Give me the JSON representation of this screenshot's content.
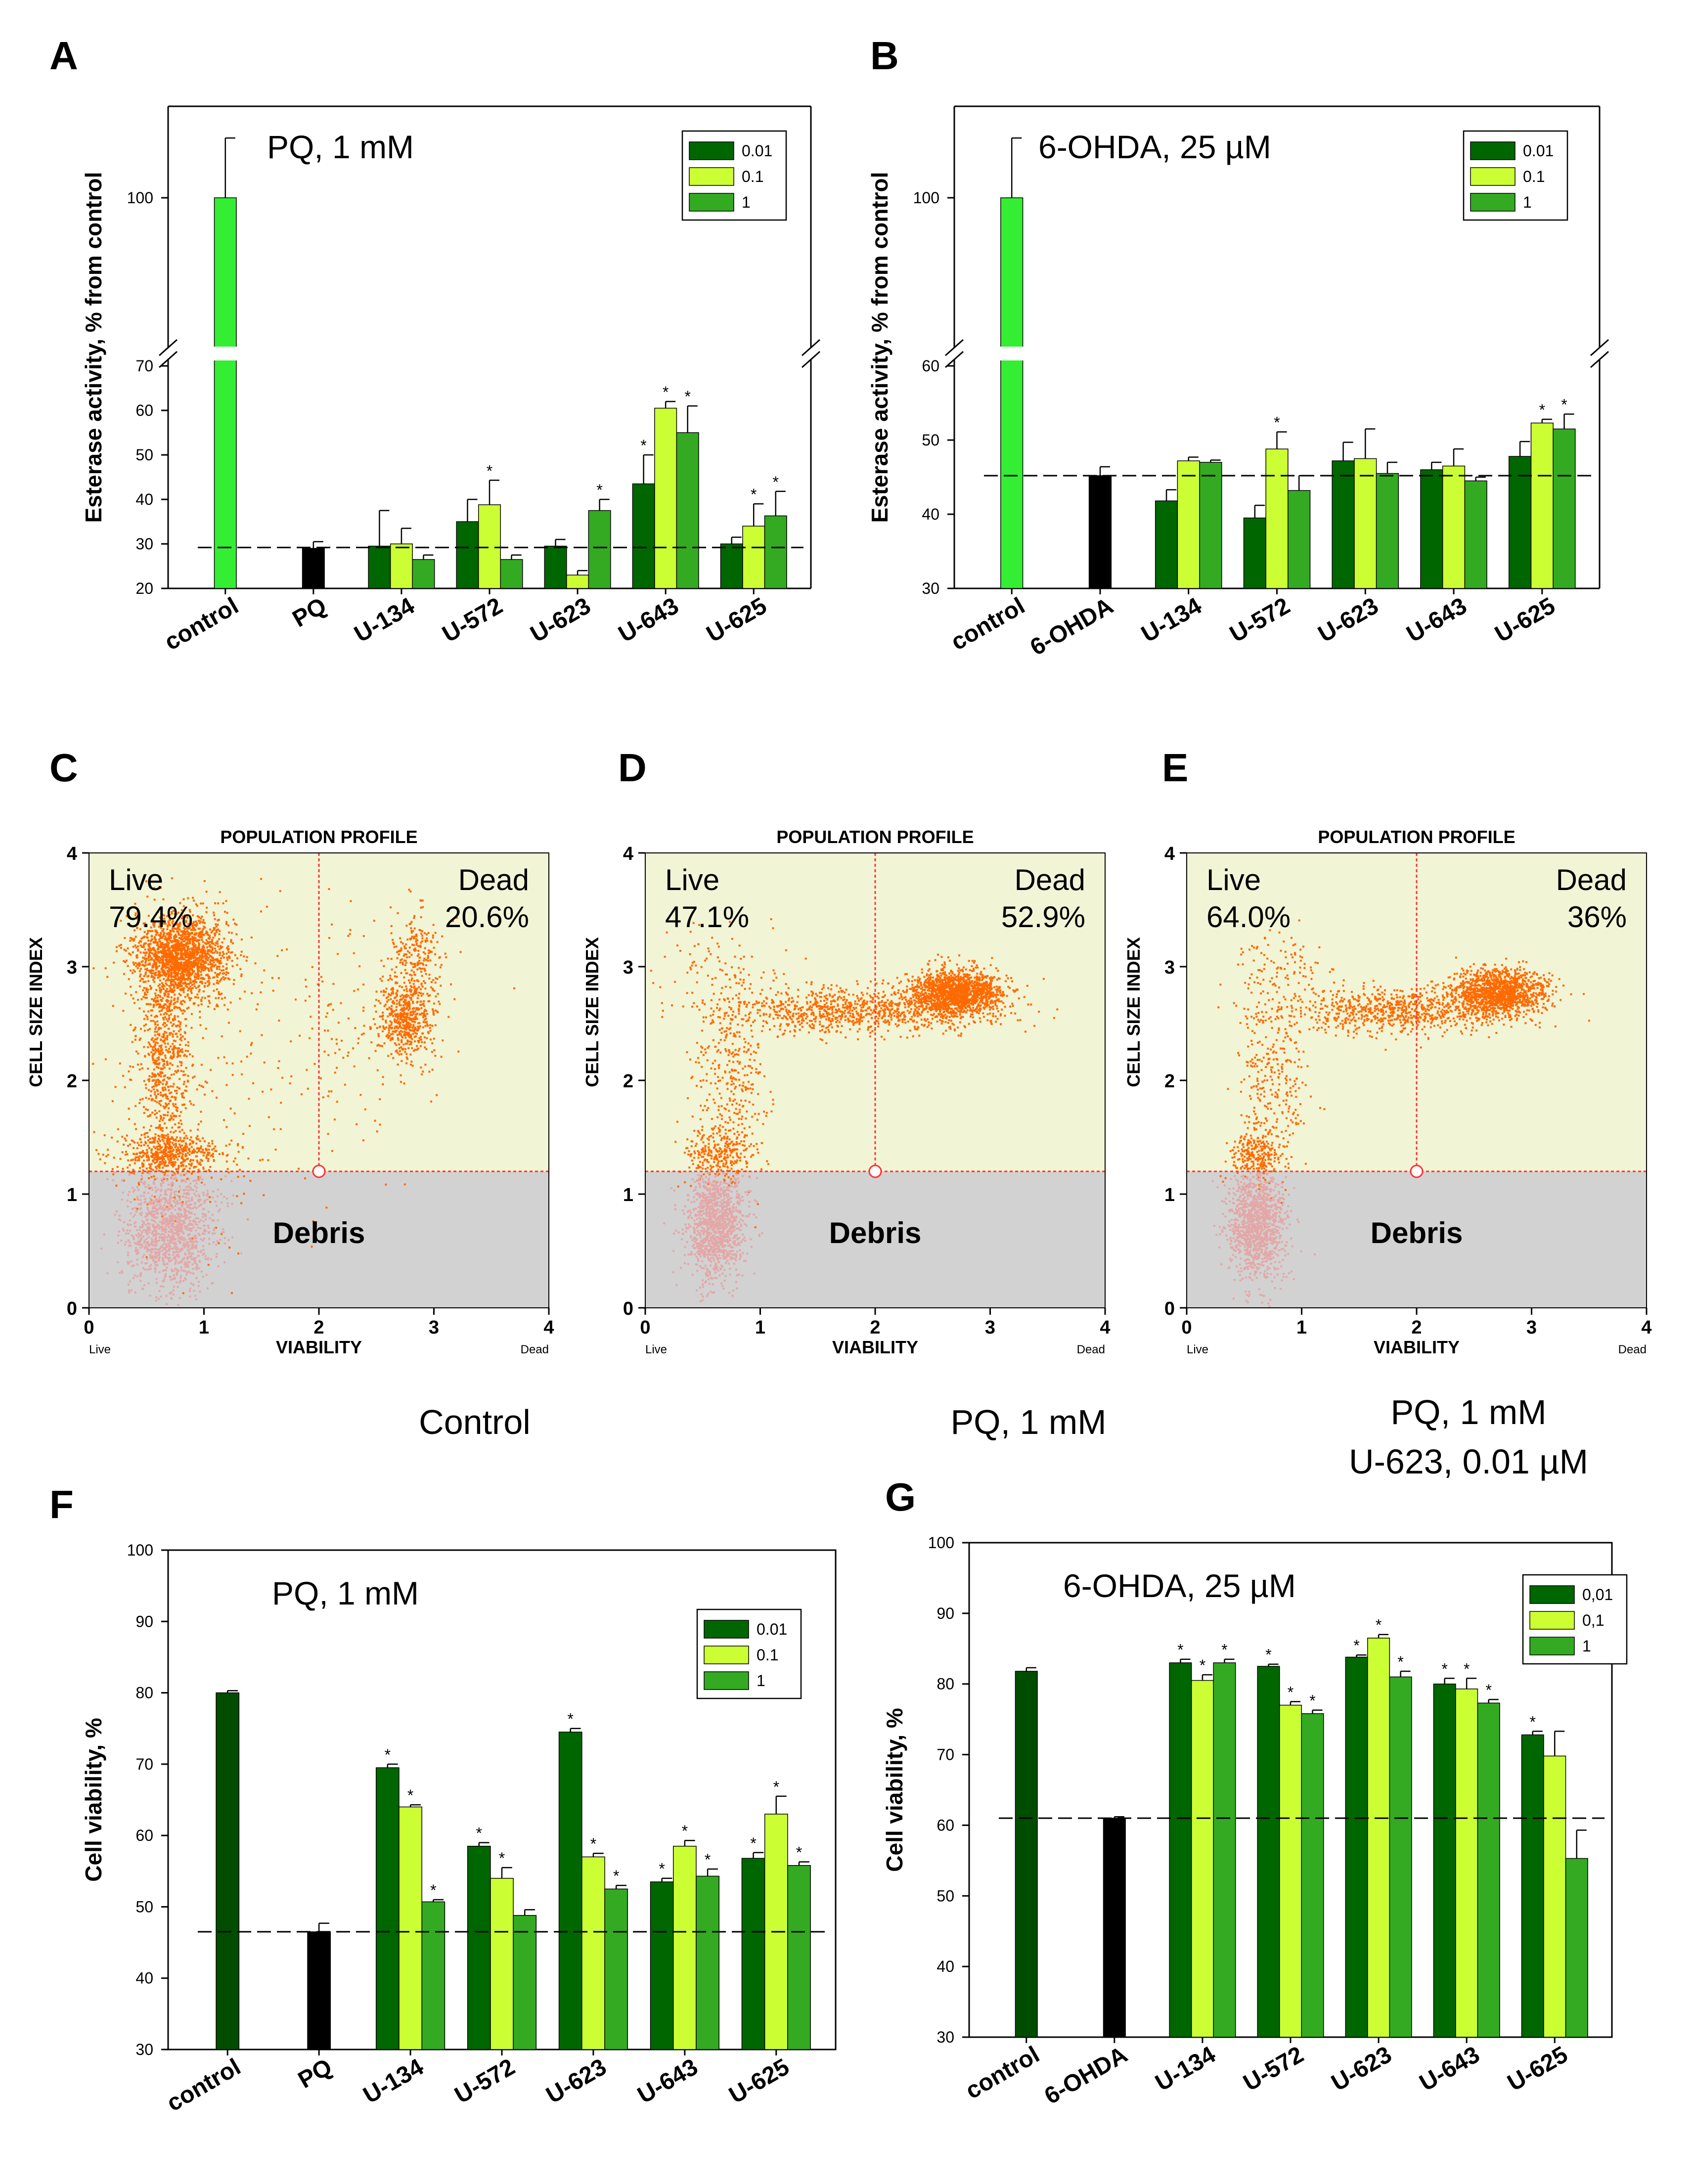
{
  "colors": {
    "c001": "#006600",
    "c01": "#ccff33",
    "c1": "#33aa22",
    "control_bright": "#33ee33",
    "control_dark": "#004d00",
    "black": "#000000",
    "flow_live": "#f1f5d6",
    "flow_debris": "#d2d2d2",
    "flow_dot": "#ff6a00",
    "flow_debris_dot": "#e3a7a7",
    "gate": "#ff3333"
  },
  "chart_data": [
    {
      "id": "A",
      "type": "bar",
      "panel_letter": "A",
      "title": "PQ, 1 mM",
      "ylabel": "Esterase activity, % from control",
      "categories": [
        "control",
        "PQ",
        "U-134",
        "U-572",
        "U-623",
        "U-643",
        "U-625"
      ],
      "legend": [
        "0.01",
        "0.1",
        "1"
      ],
      "ylim_lower": [
        20,
        70
      ],
      "yticks_lower": [
        20,
        30,
        40,
        50,
        60,
        70
      ],
      "yticks_upper": [
        100
      ],
      "axis_break": true,
      "reference_line": 29.2,
      "single_bars": [
        {
          "category": "control",
          "value": 100,
          "err": 5,
          "color": "control_bright"
        },
        {
          "category": "PQ",
          "value": 29,
          "err": 1.5,
          "color": "black"
        }
      ],
      "series": [
        {
          "name": "0.01",
          "values": [
            null,
            null,
            29.5,
            35,
            29.5,
            43.5,
            30
          ],
          "err": [
            null,
            null,
            8,
            5,
            1.5,
            6.5,
            1.5
          ]
        },
        {
          "name": "0.1",
          "values": [
            null,
            null,
            30,
            38.8,
            23,
            60.5,
            34
          ],
          "err": [
            null,
            null,
            3.5,
            5.5,
            1,
            1.5,
            5
          ]
        },
        {
          "name": "1",
          "values": [
            null,
            null,
            26.5,
            26.5,
            37.5,
            55,
            36.3
          ],
          "err": [
            null,
            null,
            1,
            1,
            2.5,
            6,
            5.5
          ]
        }
      ],
      "significance": [
        [
          null,
          null,
          false,
          false,
          false,
          true,
          false
        ],
        [
          null,
          null,
          false,
          true,
          false,
          true,
          true
        ],
        [
          null,
          null,
          false,
          false,
          true,
          true,
          true
        ]
      ],
      "star": "*"
    },
    {
      "id": "B",
      "type": "bar",
      "panel_letter": "B",
      "title": "6-OHDA, 25 µM",
      "ylabel": "Esterase activity, % from control",
      "categories": [
        "control",
        "6-OHDA",
        "U-134",
        "U-572",
        "U-623",
        "U-643",
        "U-625"
      ],
      "legend": [
        "0.01",
        "0.1",
        "1"
      ],
      "ylim_lower": [
        30,
        60
      ],
      "yticks_lower": [
        30,
        40,
        50,
        60
      ],
      "yticks_upper": [
        100
      ],
      "axis_break": true,
      "reference_line": 45.2,
      "single_bars": [
        {
          "category": "control",
          "value": 100,
          "err": 5,
          "color": "control_bright"
        },
        {
          "category": "6-OHDA",
          "value": 45.2,
          "err": 1.2,
          "color": "black"
        }
      ],
      "series": [
        {
          "name": "0.01",
          "values": [
            null,
            null,
            41.8,
            39.5,
            47.2,
            46,
            47.8
          ],
          "err": [
            null,
            null,
            1.5,
            1.7,
            2.5,
            1,
            2
          ]
        },
        {
          "name": "0.1",
          "values": [
            null,
            null,
            47.2,
            48.8,
            47.5,
            46.5,
            52.3
          ],
          "err": [
            null,
            null,
            0.5,
            2.3,
            4,
            2.3,
            0.5
          ]
        },
        {
          "name": "1",
          "values": [
            null,
            null,
            47,
            43.2,
            45.5,
            44.5,
            51.5
          ],
          "err": [
            null,
            null,
            0.3,
            2,
            1.5,
            0.5,
            2
          ]
        }
      ],
      "significance": [
        [
          null,
          null,
          false,
          false,
          false,
          false,
          false
        ],
        [
          null,
          null,
          false,
          true,
          false,
          false,
          true
        ],
        [
          null,
          null,
          false,
          false,
          false,
          false,
          true
        ]
      ],
      "star": "*"
    },
    {
      "id": "C",
      "type": "scatter",
      "panel_letter": "C",
      "title": "POPULATION PROFILE",
      "xlabel": "VIABILITY",
      "ylabel": "CELL SIZE INDEX",
      "x_end_labels": [
        "Live",
        "Dead"
      ],
      "xlim": [
        0,
        4
      ],
      "ylim": [
        0,
        4
      ],
      "xticks": [
        0,
        1,
        2,
        3,
        4
      ],
      "yticks": [
        0,
        1,
        2,
        3,
        4
      ],
      "gate": {
        "x": 2.0,
        "y": 1.2
      },
      "regions": {
        "live_label": "Live",
        "live_pct": "79.4%",
        "dead_label": "Dead",
        "dead_pct": "20.6%",
        "debris_label": "Debris"
      },
      "caption": [
        "Control"
      ],
      "clusters": [
        {
          "cx": 0.8,
          "cy": 3.1,
          "sx": 0.2,
          "sy": 0.18,
          "n": 1700,
          "cls": "cell"
        },
        {
          "cx": 0.65,
          "cy": 2.2,
          "sx": 0.12,
          "sy": 0.55,
          "n": 800,
          "cls": "cell"
        },
        {
          "cx": 0.7,
          "cy": 1.35,
          "sx": 0.25,
          "sy": 0.1,
          "n": 500,
          "cls": "cell"
        },
        {
          "cx": 1.0,
          "cy": 2.0,
          "sx": 0.5,
          "sy": 0.8,
          "n": 200,
          "cls": "cell"
        },
        {
          "cx": 2.75,
          "cy": 2.55,
          "sx": 0.13,
          "sy": 0.18,
          "n": 500,
          "cls": "cell"
        },
        {
          "cx": 2.85,
          "cy": 3.05,
          "sx": 0.12,
          "sy": 0.25,
          "n": 250,
          "cls": "cell"
        },
        {
          "cx": 2.3,
          "cy": 2.5,
          "sx": 0.35,
          "sy": 0.5,
          "n": 120,
          "cls": "cell"
        },
        {
          "cx": 0.7,
          "cy": 0.7,
          "sx": 0.2,
          "sy": 0.28,
          "n": 1300,
          "cls": "debris"
        }
      ]
    },
    {
      "id": "D",
      "type": "scatter",
      "panel_letter": "D",
      "title": "POPULATION PROFILE",
      "xlabel": "VIABILITY",
      "ylabel": "CELL SIZE INDEX",
      "x_end_labels": [
        "Live",
        "Dead"
      ],
      "xlim": [
        0,
        4
      ],
      "ylim": [
        0,
        4
      ],
      "xticks": [
        0,
        1,
        2,
        3,
        4
      ],
      "yticks": [
        0,
        1,
        2,
        3,
        4
      ],
      "gate": {
        "x": 2.0,
        "y": 1.2
      },
      "regions": {
        "live_label": "Live",
        "live_pct": "47.1%",
        "dead_label": "Dead",
        "dead_pct": "52.9%",
        "debris_label": "Debris"
      },
      "caption": [
        "PQ, 1 mM"
      ],
      "clusters": [
        {
          "cx": 2.7,
          "cy": 2.78,
          "sx": 0.2,
          "sy": 0.1,
          "n": 1500,
          "cls": "cell"
        },
        {
          "cx": 1.8,
          "cy": 2.62,
          "sx": 0.55,
          "sy": 0.1,
          "n": 900,
          "cls": "cell"
        },
        {
          "cx": 0.75,
          "cy": 2.0,
          "sx": 0.15,
          "sy": 0.45,
          "n": 350,
          "cls": "cell"
        },
        {
          "cx": 0.6,
          "cy": 1.35,
          "sx": 0.15,
          "sy": 0.12,
          "n": 250,
          "cls": "cell"
        },
        {
          "cx": 0.7,
          "cy": 3.0,
          "sx": 0.3,
          "sy": 0.2,
          "n": 80,
          "cls": "cell"
        },
        {
          "cx": 0.6,
          "cy": 0.75,
          "sx": 0.12,
          "sy": 0.25,
          "n": 1200,
          "cls": "debris"
        }
      ]
    },
    {
      "id": "E",
      "type": "scatter",
      "panel_letter": "E",
      "title": "POPULATION PROFILE",
      "xlabel": "VIABILITY",
      "ylabel": "CELL SIZE INDEX",
      "x_end_labels": [
        "Live",
        "Dead"
      ],
      "xlim": [
        0,
        4
      ],
      "ylim": [
        0,
        4
      ],
      "xticks": [
        0,
        1,
        2,
        3,
        4
      ],
      "yticks": [
        0,
        1,
        2,
        3,
        4
      ],
      "gate": {
        "x": 2.0,
        "y": 1.2
      },
      "regions": {
        "live_label": "Live",
        "live_pct": "64.0%",
        "dead_label": "Dead",
        "dead_pct": "36%",
        "debris_label": "Debris"
      },
      "caption": [
        "PQ, 1 mM",
        "U-623, 0.01 µM"
      ],
      "clusters": [
        {
          "cx": 2.7,
          "cy": 2.78,
          "sx": 0.2,
          "sy": 0.1,
          "n": 1300,
          "cls": "cell"
        },
        {
          "cx": 1.8,
          "cy": 2.62,
          "sx": 0.5,
          "sy": 0.1,
          "n": 800,
          "cls": "cell"
        },
        {
          "cx": 0.75,
          "cy": 2.0,
          "sx": 0.15,
          "sy": 0.45,
          "n": 300,
          "cls": "cell"
        },
        {
          "cx": 0.6,
          "cy": 1.35,
          "sx": 0.12,
          "sy": 0.12,
          "n": 250,
          "cls": "cell"
        },
        {
          "cx": 0.8,
          "cy": 3.05,
          "sx": 0.2,
          "sy": 0.15,
          "n": 80,
          "cls": "cell"
        },
        {
          "cx": 0.6,
          "cy": 0.75,
          "sx": 0.12,
          "sy": 0.25,
          "n": 1200,
          "cls": "debris"
        }
      ]
    },
    {
      "id": "F",
      "type": "bar",
      "panel_letter": "F",
      "title": "PQ, 1 mM",
      "ylabel": "Cell viability, %",
      "categories": [
        "control",
        "PQ",
        "U-134",
        "U-572",
        "U-623",
        "U-643",
        "U-625"
      ],
      "legend": [
        "0.01",
        "0.1",
        "1"
      ],
      "ylim": [
        30,
        100
      ],
      "yticks": [
        30,
        40,
        50,
        60,
        70,
        80,
        90,
        100
      ],
      "reference_line": 46.5,
      "single_bars": [
        {
          "category": "control",
          "value": 80,
          "err": 0.3,
          "color": "control_dark"
        },
        {
          "category": "PQ",
          "value": 46.5,
          "err": 1.2,
          "color": "black"
        }
      ],
      "series": [
        {
          "name": "0.01",
          "values": [
            null,
            null,
            69.5,
            58.5,
            74.5,
            53.5,
            56.8
          ],
          "err": [
            null,
            null,
            0.5,
            0.5,
            0.5,
            0.5,
            0.8
          ]
        },
        {
          "name": "0.1",
          "values": [
            null,
            null,
            64,
            54,
            57,
            58.5,
            63
          ],
          "err": [
            null,
            null,
            0.3,
            1.5,
            0.5,
            0.8,
            2.5
          ]
        },
        {
          "name": "1",
          "values": [
            null,
            null,
            50.7,
            48.8,
            52.5,
            54.3,
            55.8
          ],
          "err": [
            null,
            null,
            0.3,
            0.8,
            0.5,
            1,
            0.5
          ]
        }
      ],
      "significance": [
        [
          null,
          null,
          true,
          true,
          true,
          true,
          true
        ],
        [
          null,
          null,
          true,
          true,
          true,
          true,
          true
        ],
        [
          null,
          null,
          true,
          false,
          true,
          true,
          true
        ]
      ],
      "star": "*"
    },
    {
      "id": "G",
      "type": "bar",
      "panel_letter": "G",
      "title": "6-OHDA, 25 µM",
      "ylabel": "Cell viability, %",
      "categories": [
        "control",
        "6-OHDA",
        "U-134",
        "U-572",
        "U-623",
        "U-643",
        "U-625"
      ],
      "legend": [
        "0,01",
        "0,1",
        "1"
      ],
      "ylim": [
        30,
        100
      ],
      "yticks": [
        30,
        40,
        50,
        60,
        70,
        80,
        90,
        100
      ],
      "reference_line": 61,
      "single_bars": [
        {
          "category": "control",
          "value": 81.8,
          "err": 0.5,
          "color": "control_dark"
        },
        {
          "category": "6-OHDA",
          "value": 61,
          "err": 0.2,
          "color": "black"
        }
      ],
      "series": [
        {
          "name": "0,01",
          "values": [
            null,
            null,
            83,
            82.5,
            83.8,
            80,
            72.8
          ],
          "err": [
            null,
            null,
            0.5,
            0.3,
            0.3,
            0.8,
            0.5
          ]
        },
        {
          "name": "0,1",
          "values": [
            null,
            null,
            80.5,
            77,
            86.5,
            79.3,
            69.8
          ],
          "err": [
            null,
            null,
            0.8,
            0.5,
            0.5,
            1.5,
            3.5
          ]
        },
        {
          "name": "1",
          "values": [
            null,
            null,
            83,
            75.8,
            81,
            77.3,
            55.3
          ],
          "err": [
            null,
            null,
            0.5,
            0.5,
            0.8,
            0.5,
            4
          ]
        }
      ],
      "significance": [
        [
          null,
          null,
          true,
          true,
          true,
          true,
          true
        ],
        [
          null,
          null,
          true,
          true,
          true,
          true,
          false
        ],
        [
          null,
          null,
          true,
          true,
          true,
          true,
          false
        ]
      ],
      "star": "*"
    }
  ]
}
